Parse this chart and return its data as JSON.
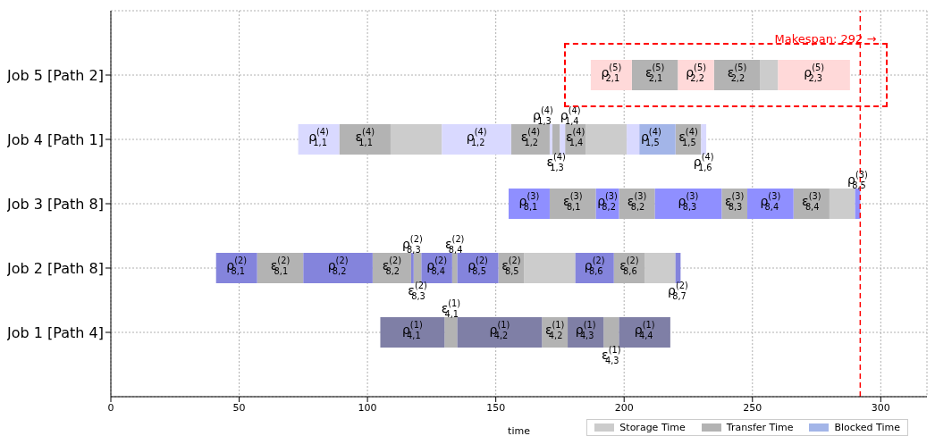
{
  "chart_data": {
    "type": "bar",
    "orientation": "horizontal",
    "xlabel": "time",
    "categories": [
      "Job 5 [Path 2]",
      "Job 4 [Path 1]",
      "Job 3 [Path 8]",
      "Job 2 [Path 8]",
      "Job 1 [Path 4]"
    ],
    "xlim": [
      0,
      318
    ],
    "xticks": [
      0,
      50,
      100,
      150,
      200,
      250,
      300
    ],
    "grid": true,
    "legend": "bottom right",
    "series": [
      {
        "color": "#cccccc",
        "name": "Storage Time",
        "values": [
          7,
          20,
          10,
          20,
          null
        ],
        "base": [
          253,
          109,
          280,
          161,
          null
        ]
      },
      {
        "color": "#cccccc",
        "values": [
          null,
          16,
          null,
          12,
          null
        ],
        "base": [
          null,
          185,
          null,
          208,
          null
        ]
      },
      {
        "color": "#b3b3b3",
        "name": "Transfer Time",
        "values": [
          18,
          20,
          18,
          18,
          5
        ],
        "base": [
          203,
          89,
          171,
          57,
          130
        ],
        "value_labels": [
          "ε$^{(5)}$$_{2,1}$",
          "ε$^{(4)}$$_{1,1}$",
          "ε$^{(3)}$$_{8,1}$",
          "ε$^{(2)}$$_{8,1}$",
          "ε$^{(1)}$$_{4,1}$"
        ]
      },
      {
        "color": "#b3b3b3",
        "values": [
          18,
          15,
          14,
          15,
          10
        ],
        "base": [
          235,
          156,
          198,
          102,
          168
        ],
        "value_labels": [
          "ε$^{(5)}$$_{2,2}$",
          "ε$^{(4)}$$_{1,2}$",
          "ε$^{(3)}$$_{8,2}$",
          "ε$^{(2)}$$_{8,2}$",
          "ε$^{(1)}$$_{4,2}$"
        ]
      },
      {
        "color": "#b3b3b3",
        "values": [
          null,
          3,
          10,
          3,
          6
        ],
        "base": [
          null,
          172,
          238,
          118,
          192
        ],
        "value_labels": [
          null,
          "ε$^{(4)}$$_{1,3}$",
          "ε$^{(3)}$$_{8,3}$",
          "ε$^{(2)}$$_{8,3}$",
          "ε$^{(1)}$$_{4,3}$"
        ]
      },
      {
        "color": "#b3b3b3",
        "values": [
          null,
          8,
          14,
          2,
          null
        ],
        "base": [
          null,
          177,
          266,
          133,
          null
        ],
        "value_labels": [
          null,
          "ε$^{(4)}$$_{1,4}$",
          "ε$^{(3)}$$_{8,4}$",
          "ε$^{(2)}$$_{8,4}$",
          null
        ]
      },
      {
        "color": "#b3b3b3",
        "values": [
          null,
          10,
          null,
          10,
          null
        ],
        "base": [
          null,
          220,
          null,
          151,
          null
        ],
        "value_labels": [
          null,
          "ε$^{(4)}$$_{1,5}$",
          null,
          "ε$^{(2)}$$_{8,5}$",
          null
        ]
      },
      {
        "color": "#b3b3b3",
        "values": [
          null,
          null,
          null,
          12,
          null
        ],
        "base": [
          null,
          null,
          null,
          196,
          null
        ],
        "value_labels": [
          null,
          null,
          null,
          "ε$^{(2)}$$_{8,6}$",
          null
        ]
      },
      {
        "colors": [
          "#ffd9d9",
          "#d9d9ff",
          "#8f8fff",
          "#8484dc",
          "#7f7fa6"
        ],
        "values": [
          16,
          16,
          16,
          16,
          25
        ],
        "base": [
          187,
          73,
          155,
          41,
          105
        ],
        "value_labels": [
          "ρ$^{(5)}$$_{2,1}$",
          "ρ$^{(4)}$$_{1,1}$",
          "ρ$^{(3)}$$_{8,1}$",
          "ρ$^{(2)}$$_{8,1}$",
          "ρ$^{(1)}$$_{4,1}$"
        ]
      },
      {
        "colors": [
          "#ffd9d9",
          "#d9d9ff",
          "#8f8fff",
          "#8484dc",
          "#7f7fa6"
        ],
        "values": [
          14,
          27,
          9,
          27,
          33
        ],
        "base": [
          221,
          129,
          189,
          75,
          135
        ],
        "value_labels": [
          "ρ$^{(5)}$$_{2,2}$",
          "ρ$^{(4)}$$_{1,2}$",
          "ρ$^{(3)}$$_{8,2}$",
          "ρ$^{(2)}$$_{8,2}$",
          "ρ$^{(1)}$$_{4,2}$"
        ]
      },
      {
        "colors": [
          "#ffd9d9",
          "#d9d9ff",
          "#8f8fff",
          "#8484dc",
          "#7f7fa6"
        ],
        "values": [
          28,
          1,
          26,
          1,
          14
        ],
        "base": [
          260,
          171,
          212,
          117,
          178
        ],
        "value_labels": [
          "ρ$^{(5)}$$_{2,3}$",
          "ρ$^{(4)}$$_{1,3}$",
          "ρ$^{(3)}$$_{8,3}$",
          "ρ$^{(2)}$$_{8,3}$",
          "ρ$^{(1)}$$_{4,3}$"
        ]
      },
      {
        "colors": [
          "#ffd9d9",
          "#d9d9ff",
          "#8f8fff",
          "#8484dc",
          "#7f7fa6"
        ],
        "values": [
          null,
          2,
          18,
          12,
          20
        ],
        "base": [
          null,
          175,
          248,
          121,
          198
        ],
        "value_labels": [
          null,
          "ρ$^{(4)}$$_{1,4}$",
          "ρ$^{(3)}$$_{8,4}$",
          "ρ$^{(2)}$$_{8,4}$",
          "ρ$^{(1)}$$_{4,4}$"
        ]
      },
      {
        "colors": [
          "#ffd9d9",
          "#d9d9ff",
          "#8f8fff",
          "#8484dc",
          "#7f7fa6"
        ],
        "values": [
          null,
          19,
          2,
          16,
          null
        ],
        "base": [
          null,
          201,
          290,
          135,
          null
        ],
        "value_labels": [
          null,
          "ρ$^{(4)}$$_{1,5}$",
          "ρ$^{(3)}$$_{8,5}$",
          "ρ$^{(2)}$$_{8,5}$",
          null
        ]
      },
      {
        "colors": [
          "#ffd9d9",
          "#d9d9ff",
          "#8f8fff",
          "#8484dc",
          "#7f7fa6"
        ],
        "values": [
          null,
          2,
          null,
          15,
          null
        ],
        "base": [
          null,
          230,
          null,
          181,
          null
        ],
        "value_labels": [
          null,
          "ρ$^{(4)}$$_{1,6}$",
          null,
          "ρ$^{(2)}$$_{8,6}$",
          null
        ]
      },
      {
        "colors": [
          "#ffd9d9",
          "#d9d9ff",
          "#8f8fff",
          "#8484dc",
          "#7f7fa6"
        ],
        "values": [
          null,
          null,
          null,
          2,
          null
        ],
        "base": [
          null,
          null,
          null,
          220,
          null
        ],
        "value_labels": [
          null,
          null,
          null,
          "ρ$^{(2)}$$_{8,7}$",
          null
        ]
      },
      {
        "color": "#a3b5e8",
        "name": "Blocked Time",
        "values": [
          null,
          14,
          null,
          null,
          null
        ],
        "base": [
          null,
          206,
          null,
          null,
          null
        ]
      }
    ],
    "ref_lines": [
      {
        "axis": "x",
        "value": 292,
        "label": "Makespan: 292 →",
        "color": "#ff0000",
        "line_style": "dashed"
      }
    ]
  }
}
